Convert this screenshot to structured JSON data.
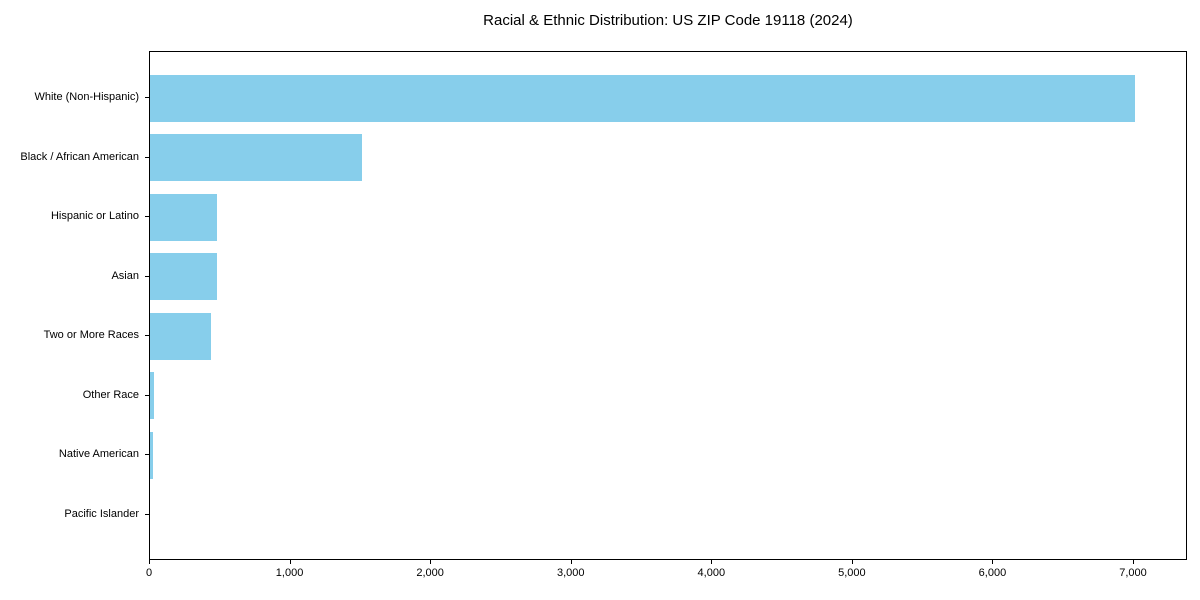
{
  "chart_data": {
    "type": "bar",
    "orientation": "horizontal",
    "title": "Racial & Ethnic Distribution: US ZIP Code 19118 (2024)",
    "categories": [
      "White (Non-Hispanic)",
      "Black / African American",
      "Hispanic or Latino",
      "Asian",
      "Two or More Races",
      "Other Race",
      "Native American",
      "Pacific Islander"
    ],
    "values": [
      7020,
      1510,
      475,
      480,
      435,
      30,
      20,
      0
    ],
    "xlabel": "",
    "ylabel": "",
    "xlim": [
      0,
      7384
    ],
    "x_ticks": [
      0,
      1000,
      2000,
      3000,
      4000,
      5000,
      6000,
      7000
    ],
    "x_tick_labels": [
      "0",
      "1,000",
      "2,000",
      "3,000",
      "4,000",
      "5,000",
      "6,000",
      "7,000"
    ],
    "bar_color": "#87CEEB",
    "axis_color": "#000000",
    "text_color": "#000000",
    "background_color": "#ffffff",
    "grid": false,
    "legend": null
  }
}
